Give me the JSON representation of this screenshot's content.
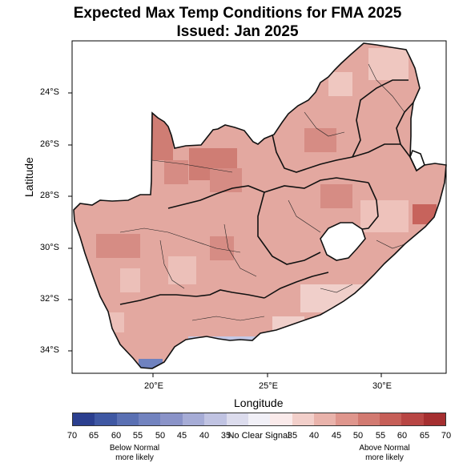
{
  "title": "Expected Max Temp Conditions for FMA 2025",
  "subtitle": "Issued: Jan 2025",
  "xlabel": "Longitude",
  "ylabel": "Latitude",
  "lat_ticks": [
    "24°S",
    "26°S",
    "28°S",
    "30°S",
    "32°S",
    "34°S"
  ],
  "lon_ticks": [
    "20°E",
    "25°E",
    "30°E"
  ],
  "legend": {
    "tick_labels": [
      "70",
      "65",
      "60",
      "55",
      "50",
      "45",
      "40",
      "35",
      "35",
      "40",
      "45",
      "50",
      "55",
      "60",
      "65",
      "70"
    ],
    "below_label_line1": "Below Normal",
    "below_label_line2": "more likely",
    "center_label": "No Clear Signal",
    "above_label_line1": "Above Normal",
    "above_label_line2": "more likely",
    "colors": [
      "#2b3f8f",
      "#3f58a3",
      "#5a70b3",
      "#7283bf",
      "#8a93c8",
      "#a6acd6",
      "#c0c3e2",
      "#dcdced",
      "#f1f0f7",
      "#faeaea",
      "#f2cfca",
      "#e9b3ab",
      "#df968d",
      "#d27a71",
      "#c65f58",
      "#b84644",
      "#a52f30"
    ]
  },
  "map": {
    "region": "South Africa, Lesotho, Eswatini",
    "dominant_category": "Above Normal 40-45%",
    "below_normal_area": "southern Cape coast"
  }
}
